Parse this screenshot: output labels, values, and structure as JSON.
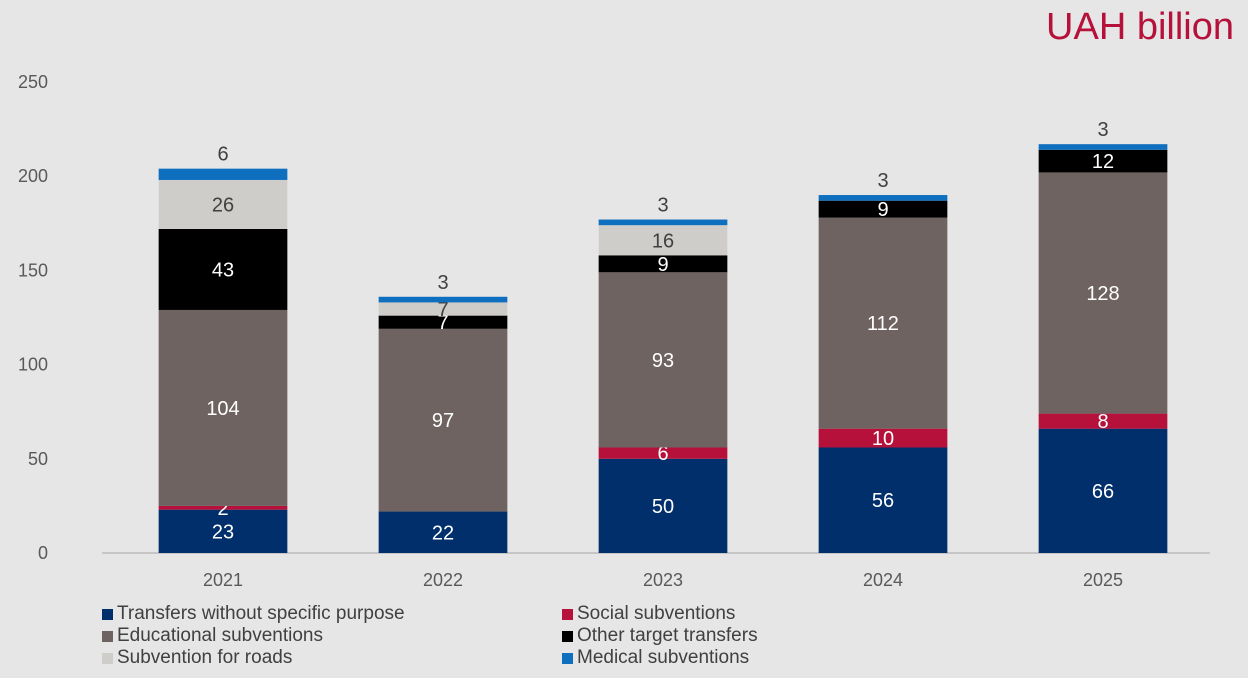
{
  "unit_label": "UAH billion",
  "colors": {
    "background": "#e7e6e6",
    "axis_text": "#595959",
    "unit_text": "#b5113a"
  },
  "chart_data": {
    "type": "bar",
    "stacked": true,
    "title": "",
    "xlabel": "",
    "ylabel": "",
    "ylim": [
      0,
      250
    ],
    "yticks": [
      0,
      50,
      100,
      150,
      200,
      250
    ],
    "grid": false,
    "legend_position": "bottom",
    "categories": [
      "2021",
      "2022",
      "2023",
      "2024",
      "2025"
    ],
    "series": [
      {
        "name": "Transfers without specific purpose",
        "color": "#002f6c",
        "label_color": "#ffffff",
        "values": [
          23,
          22,
          50,
          56,
          66
        ]
      },
      {
        "name": "Social subventions",
        "color": "#b5113a",
        "label_color": "#ffffff",
        "values": [
          2,
          0,
          6,
          10,
          8
        ]
      },
      {
        "name": "Educational subventions",
        "color": "#6e6360",
        "label_color": "#ffffff",
        "values": [
          104,
          97,
          93,
          112,
          128
        ]
      },
      {
        "name": "Other target transfers",
        "color": "#000000",
        "label_color": "#ffffff",
        "values": [
          43,
          7,
          9,
          9,
          12
        ]
      },
      {
        "name": "Subvention for roads",
        "color": "#cfcdc9",
        "label_color": "#404040",
        "values": [
          26,
          7,
          16,
          0,
          0
        ]
      },
      {
        "name": "Medical subventions",
        "color": "#0f6fbf",
        "label_color": "#404040",
        "values": [
          6,
          3,
          3,
          3,
          3
        ]
      }
    ]
  }
}
